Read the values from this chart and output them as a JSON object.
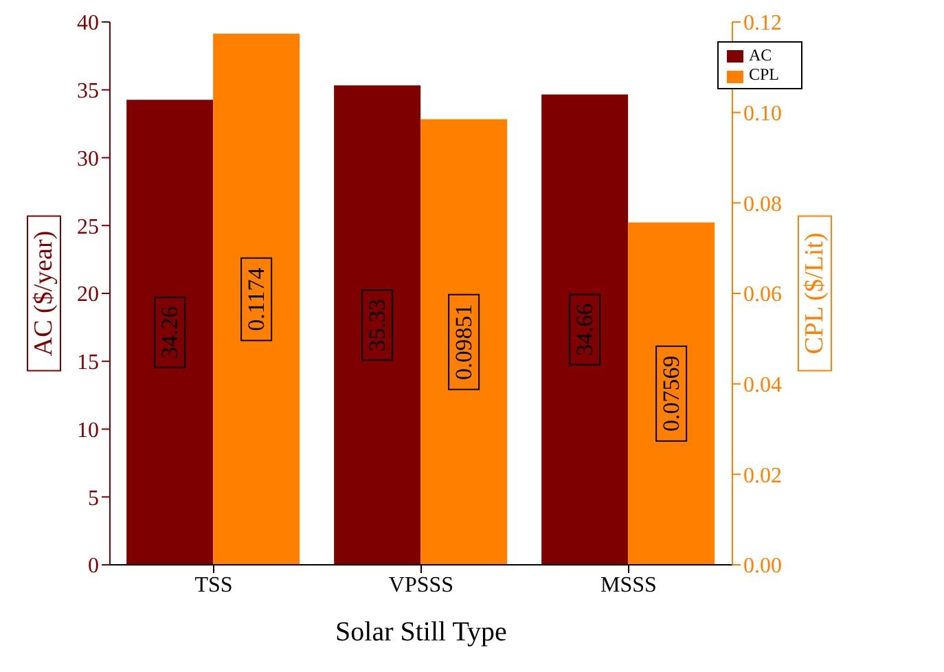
{
  "chart_data": {
    "type": "bar",
    "xlabel": "Solar Still Type",
    "ylabel": "AC ($/year)",
    "y2label": "CPL ($/Lit)",
    "categories": [
      "TSS",
      "VPSSS",
      "MSSS"
    ],
    "series": [
      {
        "name": "AC",
        "color": "#7f0000",
        "values": [
          34.26,
          35.33,
          34.66
        ]
      },
      {
        "name": "CPL",
        "color": "#ff8000",
        "values": [
          0.1174,
          0.09851,
          0.07569
        ],
        "axis": "y2"
      }
    ],
    "ylim": [
      0,
      40
    ],
    "yticks": [
      0,
      5,
      10,
      15,
      20,
      25,
      30,
      35,
      40
    ],
    "y2lim": [
      0,
      0.12
    ],
    "y2ticks": [
      {
        "value": 0,
        "label": "0.00"
      },
      {
        "value": 0.02,
        "label": "0.02"
      },
      {
        "value": 0.04,
        "label": "0.04"
      },
      {
        "value": 0.06,
        "label": "0.06"
      },
      {
        "value": 0.08,
        "label": "0.08"
      },
      {
        "value": 0.1,
        "label": "0.10"
      },
      {
        "value": 0.12,
        "label": "0.12"
      }
    ],
    "data_labels": true,
    "legend": "top right",
    "grid": false
  }
}
